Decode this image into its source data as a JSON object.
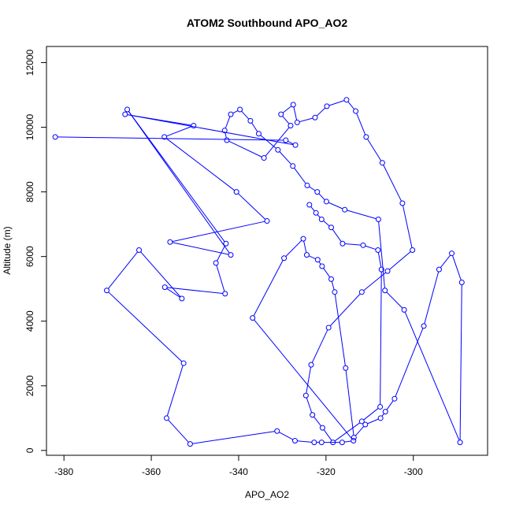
{
  "chart_data": {
    "type": "scatter",
    "title": "ATOM2 Southbound APO_AO2",
    "xlabel": "APO_AO2",
    "ylabel": "Altitude (m)",
    "xlim": [
      -384,
      -283
    ],
    "ylim": [
      -150,
      12500
    ],
    "xticks": [
      -380,
      -360,
      -340,
      -320,
      -300
    ],
    "yticks": [
      0,
      2000,
      4000,
      6000,
      8000,
      10000,
      12000
    ],
    "grid": false,
    "color": "#0000ff",
    "marker": "open-circle",
    "connected": true,
    "series": [
      {
        "x": [
          -382,
          -329.2,
          -327,
          -366,
          -350.3,
          -357,
          -340.5,
          -333.5,
          -355.7,
          -341.8,
          -365.5,
          -342.9,
          -345.2,
          -343.1,
          -356.9,
          -353.0,
          -362.8,
          -370.2,
          -352.6,
          -356.5,
          -351.1,
          -331.2,
          -327.1,
          -322.7,
          -321.0,
          -316.3,
          -313.7,
          -336.8,
          -329.6,
          -325.2,
          -324.4,
          -321.9,
          -320.9,
          -318.8,
          -318.0,
          -315.5,
          -313.6,
          -311.0,
          -307.5,
          -306.4,
          -304.3,
          -297.6,
          -294.1,
          -291.2,
          -288.9,
          -289.3,
          -302.1,
          -306.5,
          -308.0,
          -315.7,
          -319.9,
          -322.0,
          -324.3,
          -327.6,
          -331.0,
          -335.4,
          -337.3,
          -339.7,
          -341.8,
          -343.2,
          -342.7,
          -334.2,
          -328.1,
          -330.3,
          -327.5,
          -326.6,
          -322.5,
          -319.8,
          -315.3,
          -313.2,
          -310.8,
          -307.1,
          -302.5,
          -300.2,
          -305.9,
          -311.8,
          -319.4,
          -323.4,
          -324.6,
          -323.1,
          -320.8,
          -318.4,
          -311.8,
          -307.6,
          -307.3,
          -308.1,
          -311.5,
          -316.2,
          -318.8,
          -321.0,
          -322.3,
          -323.8
        ],
        "y": [
          9700,
          9600,
          9450,
          10400,
          10050,
          9700,
          8000,
          7100,
          6450,
          6050,
          10550,
          6400,
          5800,
          4850,
          5050,
          4700,
          6200,
          4950,
          2700,
          1000,
          200,
          600,
          300,
          250,
          250,
          250,
          300,
          4100,
          5950,
          6550,
          6050,
          5900,
          5700,
          5300,
          4900,
          2550,
          400,
          800,
          1000,
          1200,
          1600,
          3850,
          5600,
          6100,
          5200,
          250,
          4350,
          4950,
          7150,
          7450,
          7700,
          8000,
          8200,
          8800,
          9300,
          9800,
          10200,
          10550,
          10400,
          9900,
          9600,
          9050,
          10050,
          10400,
          10700,
          10150,
          10300,
          10650,
          10850,
          10500,
          9700,
          8900,
          7650,
          6200,
          5550,
          4900,
          3800,
          2650,
          1700,
          1100,
          700,
          250,
          900,
          1350,
          5600,
          6200,
          6350,
          6400,
          6900,
          7150,
          7350,
          7600
        ]
      }
    ]
  }
}
